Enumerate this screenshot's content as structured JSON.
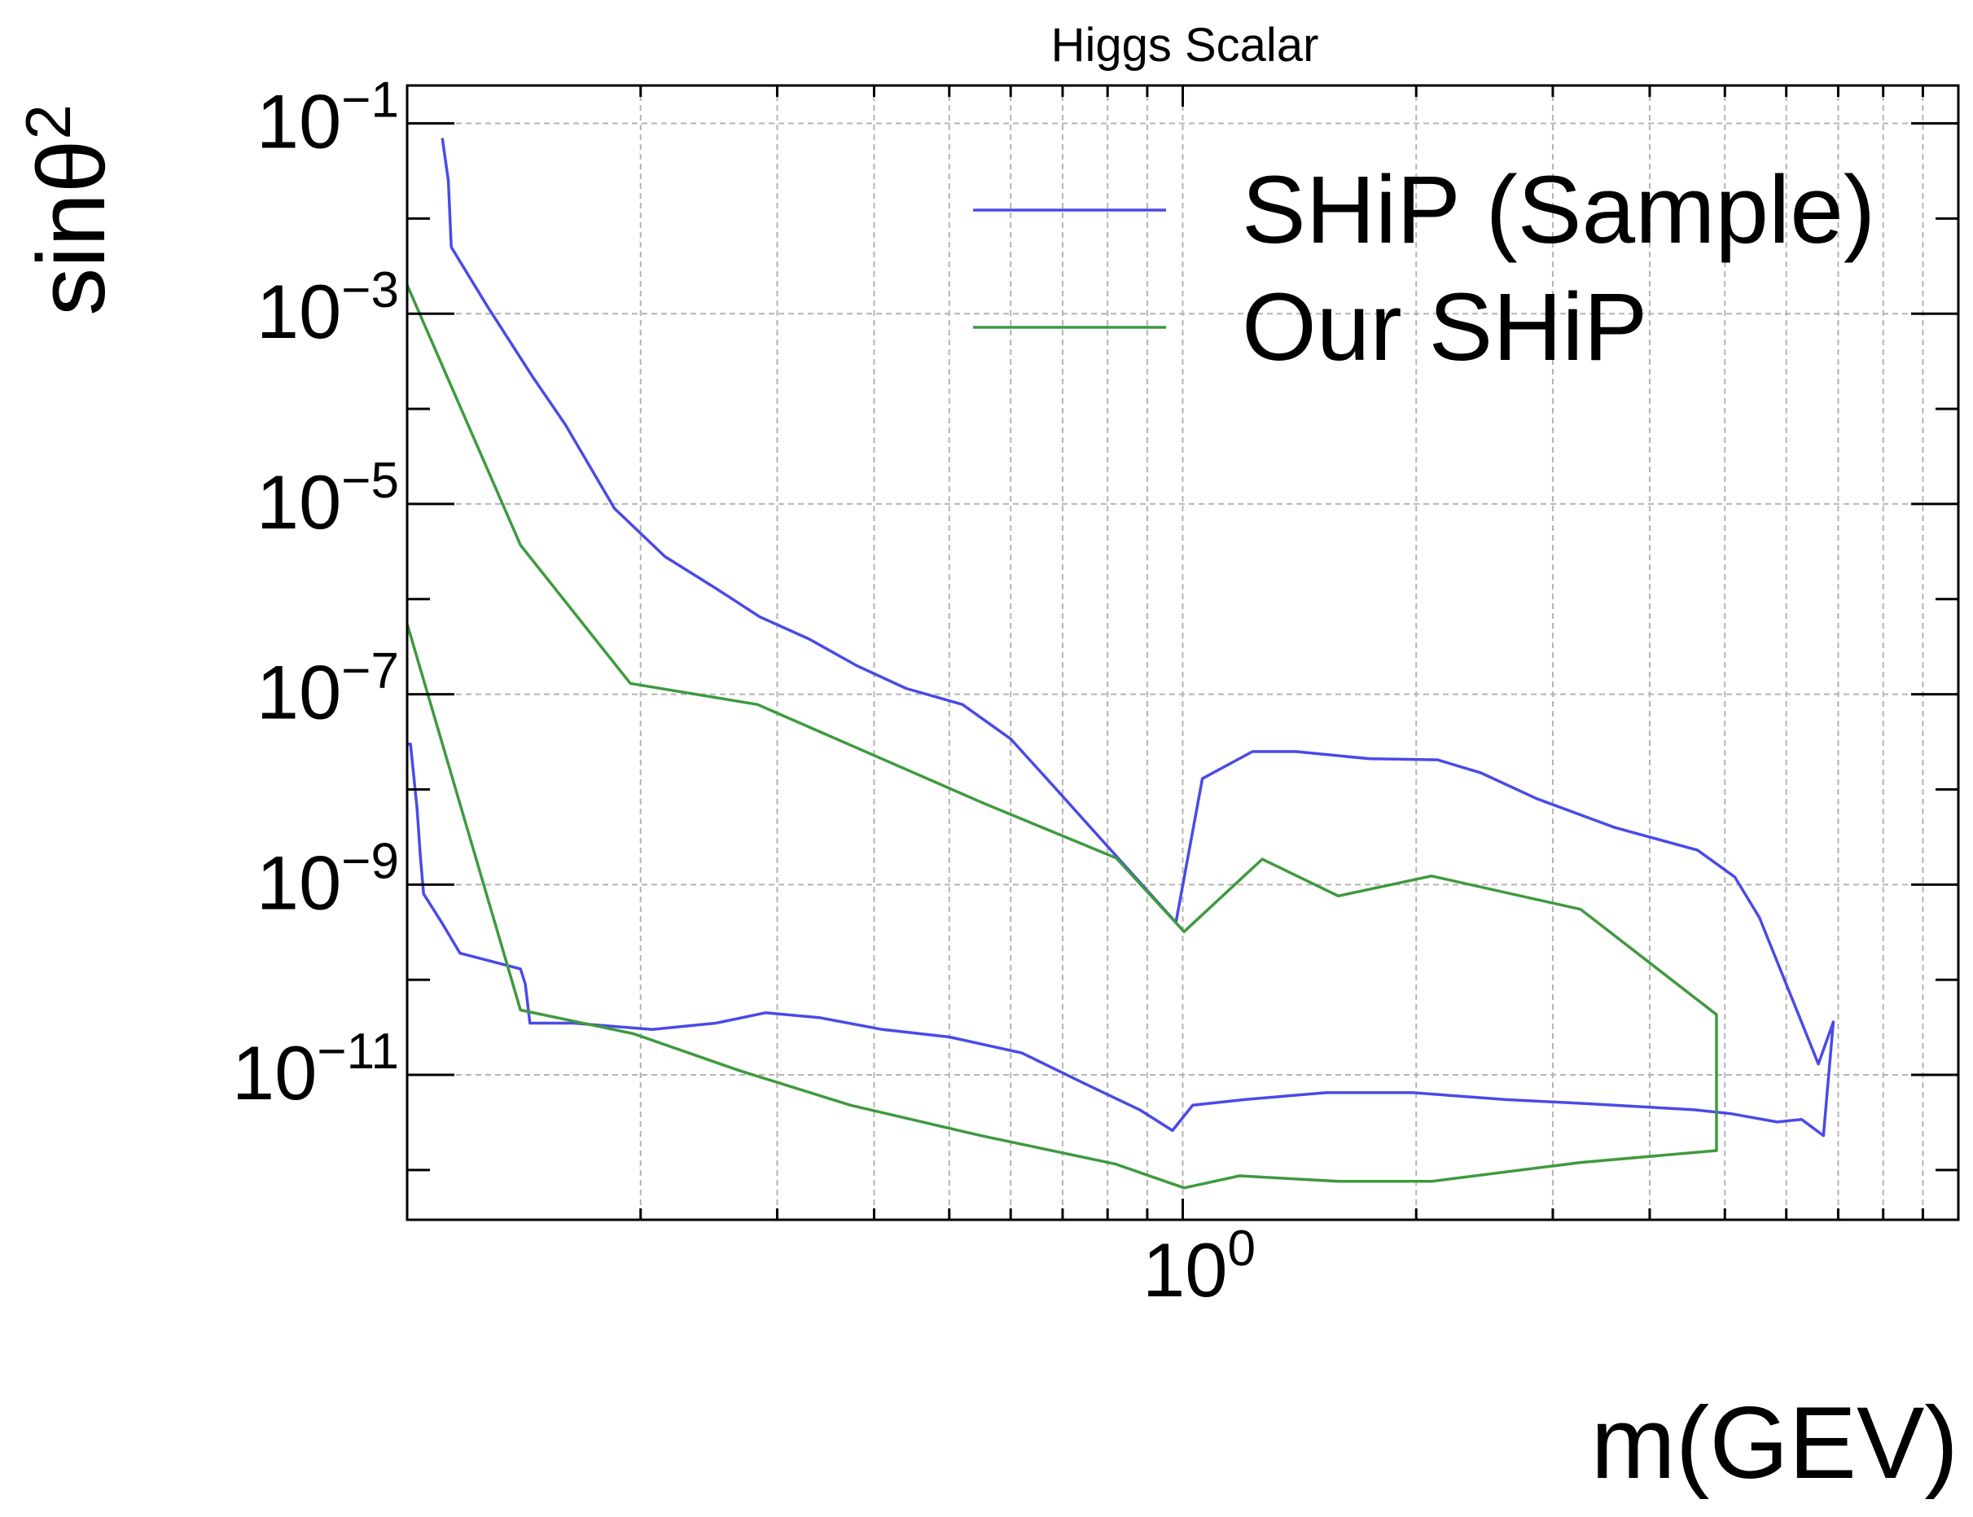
{
  "chart_data": {
    "type": "line",
    "title": "Higgs Scalar",
    "xlabel": "m(GEV)",
    "ylabel_base": "sinθ",
    "ylabel_sup": "2",
    "xscale": "log",
    "yscale": "log",
    "xlim": [
      0.1,
      10.0
    ],
    "ylim": [
      3e-13,
      0.25
    ],
    "grid": true,
    "legend_position": "top-right",
    "x_ticks": [
      {
        "value": 1,
        "base": "10",
        "exp": "0"
      }
    ],
    "y_ticks": [
      {
        "value": 0.1,
        "base": "10",
        "exp": "−1"
      },
      {
        "value": 0.001,
        "base": "10",
        "exp": "−3"
      },
      {
        "value": 1e-05,
        "base": "10",
        "exp": "−5"
      },
      {
        "value": 1e-07,
        "base": "10",
        "exp": "−7"
      },
      {
        "value": 1e-09,
        "base": "10",
        "exp": "−9"
      },
      {
        "value": 1e-11,
        "base": "10",
        "exp": "−11"
      }
    ],
    "series": [
      {
        "name": "SHiP (Sample)",
        "color": "#4a4ae8",
        "x": [
          0.111,
          0.113,
          0.114,
          0.127,
          0.145,
          0.16,
          0.185,
          0.215,
          0.25,
          0.285,
          0.33,
          0.38,
          0.44,
          0.52,
          0.6,
          0.68,
          0.98,
          1.06,
          1.23,
          1.4,
          1.74,
          2.13,
          2.42,
          2.86,
          3.6,
          4.61,
          5.15,
          5.54,
          6.23,
          6.6,
          6.9,
          6.7,
          6.28,
          5.84,
          5.1,
          4.56,
          3.3,
          2.61,
          1.98,
          1.53,
          1.2,
          1.03,
          0.97,
          0.88,
          0.75,
          0.62,
          0.5,
          0.41,
          0.34,
          0.29,
          0.25,
          0.207,
          0.164,
          0.144,
          0.142,
          0.14,
          0.117,
          0.111,
          0.105,
          0.104,
          0.103,
          0.101,
          0.1
        ],
        "y": [
          0.07,
          0.025,
          0.005,
          0.00118,
          0.00022,
          6.8e-05,
          9e-06,
          2.8e-06,
          1.3e-06,
          6.5e-07,
          3.8e-07,
          2e-07,
          1.15e-07,
          7.8e-08,
          3.4e-08,
          1.1e-08,
          4e-10,
          1.3e-08,
          2.5e-08,
          2.5e-08,
          2.1e-08,
          2.05e-08,
          1.5e-08,
          8e-09,
          4e-09,
          2.3e-09,
          1.2e-09,
          4.5e-10,
          4.2e-11,
          1.3e-11,
          3.6e-11,
          2.3e-12,
          3.4e-12,
          3.2e-12,
          3.9e-12,
          4.3e-12,
          5e-12,
          5.5e-12,
          6.5e-12,
          6.5e-12,
          5.5e-12,
          4.8e-12,
          2.6e-12,
          4.3e-12,
          8e-12,
          1.7e-11,
          2.5e-11,
          3e-11,
          4e-11,
          4.5e-11,
          3.5e-11,
          3e-11,
          3.5e-11,
          3.5e-11,
          9e-11,
          1.3e-10,
          1.9e-10,
          3.9e-10,
          8e-10,
          2e-09,
          6.3e-09,
          3e-08,
          3e-08
        ]
      },
      {
        "name": "Our SHiP",
        "color": "#3e9a3e",
        "x": [
          0.1,
          0.14,
          0.194,
          0.283,
          0.553,
          0.821,
          1.004,
          1.266,
          1.587,
          2.093,
          3.258,
          4.877,
          4.877,
          3.258,
          2.093,
          1.587,
          1.184,
          1.004,
          0.818,
          0.549,
          0.373,
          0.269,
          0.196,
          0.14,
          0.1
        ],
        "y": [
          0.002,
          3.7e-06,
          1.3e-07,
          7.8e-08,
          7.2e-09,
          1.9e-09,
          3.2e-10,
          1.85e-09,
          7.6e-10,
          1.23e-09,
          5.5e-10,
          4.3e-11,
          1.6e-12,
          1.2e-12,
          7.6e-13,
          7.6e-13,
          8.7e-13,
          6.5e-13,
          1.16e-12,
          2.3e-12,
          4.8e-12,
          1.1e-11,
          2.7e-11,
          4.8e-11,
          5.5e-07
        ]
      }
    ]
  }
}
